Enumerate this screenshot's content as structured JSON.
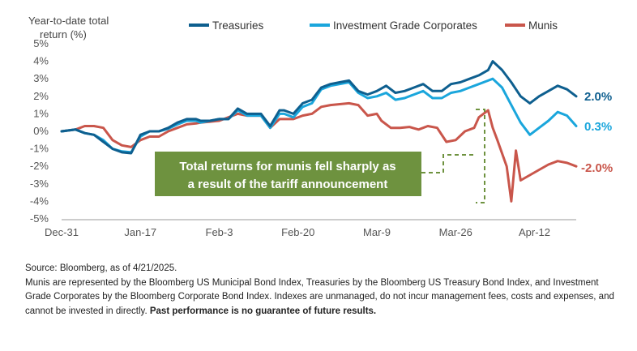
{
  "chart_data": {
    "type": "line",
    "ylabel_line1": "Year-to-date total",
    "ylabel_line2": "return (%)",
    "ylim": [
      -5,
      5
    ],
    "yticks": [
      "5%",
      "4%",
      "3%",
      "2%",
      "1%",
      "0%",
      "-1%",
      "-2%",
      "-3%",
      "-4%",
      "-5%"
    ],
    "ytick_values": [
      5,
      4,
      3,
      2,
      1,
      0,
      -1,
      -2,
      -3,
      -4,
      -5
    ],
    "xticks": [
      "Dec-31",
      "Jan-17",
      "Feb-3",
      "Feb-20",
      "Mar-9",
      "Mar-26",
      "Apr-12"
    ],
    "xtick_positions": [
      0,
      17,
      34,
      51,
      68,
      85,
      102
    ],
    "xlim": [
      0,
      111
    ],
    "grid": false,
    "legend_position": "top",
    "series": [
      {
        "name": "Treasuries",
        "color": "#0e5f8f",
        "end_label": "2.0%",
        "x": [
          0,
          3,
          5,
          7,
          9,
          11,
          13,
          15,
          17,
          19,
          21,
          23,
          25,
          27,
          29,
          30,
          32,
          34,
          36,
          38,
          40,
          41,
          43,
          45,
          47,
          48,
          50,
          52,
          54,
          56,
          58,
          60,
          62,
          64,
          66,
          68,
          70,
          72,
          74,
          76,
          78,
          80,
          82,
          84,
          86,
          88,
          90,
          92,
          93,
          95,
          97,
          99,
          101,
          103,
          105,
          107,
          109,
          111
        ],
        "y": [
          0,
          0.1,
          -0.1,
          -0.2,
          -0.6,
          -1.0,
          -1.2,
          -1.25,
          -0.2,
          0,
          0,
          0.2,
          0.5,
          0.7,
          0.7,
          0.6,
          0.6,
          0.7,
          0.7,
          1.3,
          1.0,
          1.0,
          1.0,
          0.3,
          1.2,
          1.2,
          1.0,
          1.6,
          1.8,
          2.5,
          2.7,
          2.8,
          2.9,
          2.3,
          2.1,
          2.3,
          2.6,
          2.2,
          2.3,
          2.5,
          2.7,
          2.3,
          2.3,
          2.7,
          2.8,
          3.0,
          3.2,
          3.5,
          4.0,
          3.5,
          2.8,
          2.0,
          1.6,
          2.0,
          2.3,
          2.6,
          2.4,
          2.0
        ]
      },
      {
        "name": "Investment Grade Corporates",
        "color": "#1aa6dc",
        "end_label": "0.3%",
        "x": [
          0,
          3,
          5,
          7,
          9,
          11,
          13,
          15,
          17,
          19,
          21,
          23,
          25,
          27,
          29,
          30,
          32,
          34,
          36,
          38,
          40,
          41,
          43,
          45,
          47,
          48,
          50,
          52,
          54,
          56,
          58,
          60,
          62,
          64,
          66,
          68,
          70,
          72,
          74,
          76,
          78,
          80,
          82,
          84,
          86,
          88,
          90,
          92,
          93,
          95,
          97,
          99,
          101,
          103,
          105,
          107,
          109,
          111
        ],
        "y": [
          0,
          0.1,
          -0.1,
          -0.2,
          -0.5,
          -1.0,
          -1.15,
          -1.2,
          -0.3,
          0,
          0,
          0.15,
          0.4,
          0.6,
          0.6,
          0.5,
          0.6,
          0.7,
          0.7,
          1.2,
          0.9,
          0.9,
          0.9,
          0.2,
          1.0,
          1.0,
          0.8,
          1.4,
          1.6,
          2.4,
          2.6,
          2.7,
          2.8,
          2.2,
          1.9,
          2.0,
          2.2,
          1.8,
          1.9,
          2.1,
          2.3,
          1.9,
          1.9,
          2.2,
          2.3,
          2.5,
          2.7,
          2.9,
          3.0,
          2.5,
          1.5,
          0.5,
          -0.2,
          0.2,
          0.6,
          1.1,
          0.9,
          0.3
        ]
      },
      {
        "name": "Munis",
        "color": "#c9564b",
        "end_label": "-2.0%",
        "x": [
          0,
          3,
          5,
          7,
          9,
          11,
          13,
          15,
          17,
          19,
          21,
          23,
          25,
          27,
          29,
          30,
          32,
          34,
          36,
          38,
          40,
          41,
          43,
          45,
          47,
          48,
          50,
          52,
          54,
          56,
          58,
          60,
          62,
          64,
          66,
          68,
          69,
          71,
          73,
          75,
          77,
          79,
          81,
          83,
          85,
          87,
          89,
          90,
          92,
          93,
          94,
          96,
          97,
          98,
          99,
          101,
          103,
          105,
          107,
          109,
          111
        ],
        "y": [
          0,
          0.1,
          0.3,
          0.3,
          0.2,
          -0.5,
          -0.8,
          -0.9,
          -0.5,
          -0.3,
          -0.3,
          0.0,
          0.2,
          0.4,
          0.45,
          0.5,
          0.55,
          0.6,
          0.8,
          1.0,
          0.9,
          0.9,
          0.9,
          0.2,
          0.7,
          0.7,
          0.7,
          0.9,
          1.0,
          1.4,
          1.5,
          1.55,
          1.6,
          1.5,
          0.9,
          1.0,
          0.6,
          0.2,
          0.2,
          0.25,
          0.1,
          0.3,
          0.2,
          -0.6,
          -0.5,
          0.0,
          0.2,
          0.8,
          1.2,
          0.2,
          -0.5,
          -2.0,
          -4.0,
          -1.1,
          -2.8,
          -2.5,
          -2.2,
          -1.9,
          -1.7,
          -1.8,
          -2.0
        ]
      }
    ],
    "annotation": {
      "line1": "Total returns for munis fell sharply as",
      "line2": "a result of the tariff announcement",
      "color": "#6e923f"
    }
  },
  "footnote": {
    "line1": "Source: Bloomberg, as of 4/21/2025.",
    "body": "Munis are represented by the Bloomberg US Municipal Bond Index, Treasuries by the Bloomberg US Treasury Bond Index, and Investment Grade Corporates by the Bloomberg Corporate Bond Index. Indexes are unmanaged, do not incur management fees, costs and expenses, and cannot be invested in directly.",
    "bold": "Past performance is no guarantee of future results."
  }
}
